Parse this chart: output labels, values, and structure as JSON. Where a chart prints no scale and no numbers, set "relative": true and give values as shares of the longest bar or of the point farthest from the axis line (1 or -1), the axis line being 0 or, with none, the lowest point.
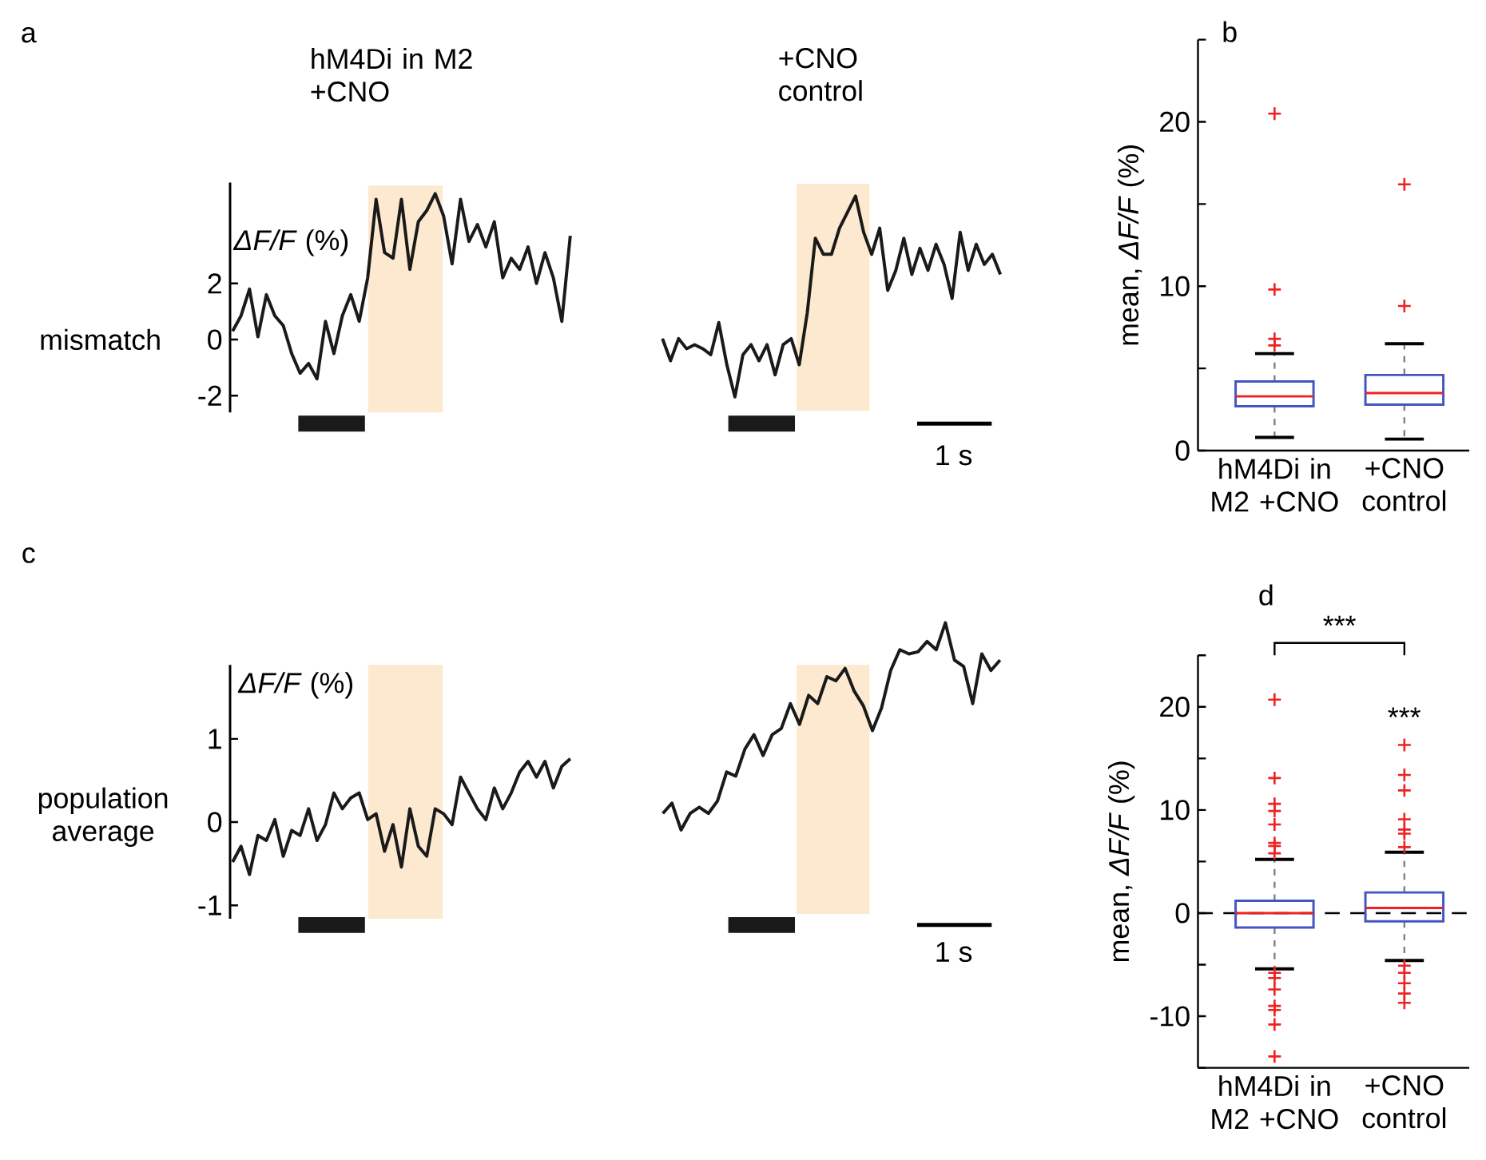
{
  "chart_data": [
    {
      "type": "line",
      "title": "hM4Di in M2 +CNO",
      "ylabel": "mismatch",
      "annotations": [
        "a",
        "*ΔF/F* (%)"
      ],
      "tick_labels": "y",
      "categories": [
        null,
        null,
        null,
        null,
        null,
        null,
        null,
        null,
        null,
        null,
        null,
        null,
        null,
        null,
        null,
        null,
        null,
        null,
        null,
        null,
        null,
        null,
        null,
        null,
        null,
        null,
        null,
        null,
        null,
        null,
        null,
        null,
        null,
        null,
        null,
        null,
        null,
        null,
        null,
        null,
        null
      ],
      "series": [
        {
          "color": "#1a1a1a",
          "values": [
            0.3,
            0.85,
            1.8,
            0.1,
            1.6,
            0.85,
            0.5,
            -0.5,
            -1.2,
            -0.85,
            -1.4,
            0.65,
            -0.5,
            0.85,
            1.6,
            0.65,
            2.2,
            5.0,
            3.1,
            2.9,
            5.0,
            2.5,
            4.2,
            4.6,
            5.2,
            4.4,
            2.7,
            5.0,
            3.5,
            4.1,
            3.3,
            4.2,
            2.2,
            2.9,
            2.5,
            3.3,
            2.0,
            3.1,
            2.2,
            0.65,
            3.7
          ]
        }
      ],
      "ylim": [
        -2.6,
        5.6
      ],
      "yticks": [
        -2,
        0,
        2
      ]
    },
    {
      "type": "line",
      "title": "+CNO control",
      "annotations": [
        "1 s"
      ],
      "relative": true,
      "categories": [
        null,
        null,
        null,
        null,
        null,
        null,
        null,
        null,
        null,
        null,
        null,
        null,
        null,
        null,
        null,
        null,
        null,
        null,
        null,
        null,
        null,
        null,
        null,
        null,
        null,
        null,
        null,
        null,
        null,
        null,
        null,
        null,
        null,
        null,
        null,
        null,
        null,
        null,
        null,
        null,
        null,
        null,
        null
      ],
      "series": [
        {
          "color": "#1a1a1a",
          "values": [
            0.29,
            0.18,
            0.29,
            0.24,
            0.26,
            0.24,
            0.21,
            0.37,
            0.16,
            0,
            0.21,
            0.26,
            0.18,
            0.26,
            0.11,
            0.26,
            0.29,
            0.16,
            0.42,
            0.79,
            0.71,
            0.71,
            0.84,
            0.92,
            1,
            0.82,
            0.71,
            0.84,
            0.53,
            0.63,
            0.79,
            0.61,
            0.74,
            0.63,
            0.76,
            0.66,
            0.49,
            0.82,
            0.63,
            0.76,
            0.66,
            0.71,
            0.61
          ]
        }
      ]
    },
    {
      "type": "box",
      "categories": [
        "hM4Di in M2 +CNO",
        "+CNO control"
      ],
      "ylabel": "mean, *ΔF/F* (%)",
      "annotations": [
        "b"
      ],
      "ylim": [
        0,
        25
      ],
      "yticks": [
        0,
        {
          "value": 5,
          "label": null
        },
        10,
        {
          "value": 15,
          "label": null
        },
        20,
        {
          "value": 25,
          "label": null
        }
      ],
      "boxes": [
        {
          "low": 0.8,
          "q1": 2.7,
          "median": 3.3,
          "q3": 4.2,
          "high": 5.9,
          "outliers": [
            6.4,
            6.8,
            9.8,
            20.5
          ]
        },
        {
          "low": 0.7,
          "q1": 2.8,
          "median": 3.5,
          "q3": 4.6,
          "high": 6.5,
          "outliers": [
            8.8,
            16.2
          ]
        }
      ]
    },
    {
      "type": "line",
      "ylabel": "population average",
      "annotations": [
        "c",
        "*ΔF/F* (%)"
      ],
      "tick_labels": "y",
      "categories": [
        null,
        null,
        null,
        null,
        null,
        null,
        null,
        null,
        null,
        null,
        null,
        null,
        null,
        null,
        null,
        null,
        null,
        null,
        null,
        null,
        null,
        null,
        null,
        null,
        null,
        null,
        null,
        null,
        null,
        null,
        null,
        null,
        null,
        null,
        null,
        null,
        null,
        null,
        null,
        null,
        null
      ],
      "series": [
        {
          "color": "#1a1a1a",
          "values": [
            -0.48,
            -0.29,
            -0.63,
            -0.16,
            -0.22,
            0.03,
            -0.41,
            -0.1,
            -0.16,
            0.16,
            -0.22,
            -0.03,
            0.35,
            0.16,
            0.29,
            0.35,
            0.03,
            0.1,
            -0.35,
            -0.03,
            -0.54,
            0.16,
            -0.29,
            -0.41,
            0.16,
            0.1,
            -0.03,
            0.54,
            0.35,
            0.16,
            0.03,
            0.41,
            0.16,
            0.35,
            0.6,
            0.73,
            0.54,
            0.73,
            0.41,
            0.67,
            0.76
          ]
        }
      ],
      "ylim": [
        -1.16,
        1.89
      ],
      "yticks": [
        -1,
        0,
        1
      ]
    },
    {
      "type": "line",
      "annotations": [
        "1 s"
      ],
      "relative": true,
      "categories": [
        null,
        null,
        null,
        null,
        null,
        null,
        null,
        null,
        null,
        null,
        null,
        null,
        null,
        null,
        null,
        null,
        null,
        null,
        null,
        null,
        null,
        null,
        null,
        null,
        null,
        null,
        null,
        null,
        null,
        null,
        null,
        null,
        null,
        null,
        null,
        null,
        null,
        null
      ],
      "series": [
        {
          "color": "#1a1a1a",
          "values": [
            0.08,
            0.13,
            0,
            0.08,
            0.11,
            0.08,
            0.14,
            0.28,
            0.26,
            0.39,
            0.46,
            0.36,
            0.46,
            0.49,
            0.61,
            0.51,
            0.65,
            0.61,
            0.74,
            0.72,
            0.78,
            0.67,
            0.6,
            0.48,
            0.59,
            0.77,
            0.87,
            0.85,
            0.86,
            0.91,
            0.87,
            1,
            0.82,
            0.79,
            0.61,
            0.85,
            0.77,
            0.82
          ]
        }
      ]
    },
    {
      "type": "box",
      "categories": [
        "hM4Di in M2 +CNO",
        "+CNO control"
      ],
      "ylabel": "mean, *ΔF/F* (%)",
      "annotations": [
        "d",
        "***",
        "***"
      ],
      "ylim": [
        -15,
        25
      ],
      "yticks": [
        {
          "value": -15,
          "label": null
        },
        -10,
        {
          "value": -5,
          "label": null
        },
        0,
        {
          "value": 5,
          "label": null
        },
        10,
        {
          "value": 15,
          "label": null
        },
        20,
        {
          "value": 25,
          "label": null
        }
      ],
      "ref_lines": [
        {
          "axis": "y",
          "value": 0,
          "color": "#000000",
          "line_style": "dashed"
        }
      ],
      "boxes": [
        {
          "low": -5.4,
          "q1": -1.4,
          "median": 0,
          "q3": 1.2,
          "high": 5.2,
          "outliers": [
            5.8,
            6.5,
            6.8,
            8.6,
            9.9,
            10.6,
            13.1,
            20.7,
            -5.8,
            -6.3,
            -7.4,
            -9.0,
            -9.4,
            -10.8,
            -13.9
          ]
        },
        {
          "low": -4.6,
          "q1": -0.8,
          "median": 0.5,
          "q3": 2.0,
          "high": 5.9,
          "outliers": [
            6.4,
            7.7,
            8.1,
            9.1,
            11.9,
            13.4,
            16.3,
            -5.1,
            -5.8,
            -6.8,
            -7.8,
            -8.7
          ]
        }
      ]
    }
  ]
}
